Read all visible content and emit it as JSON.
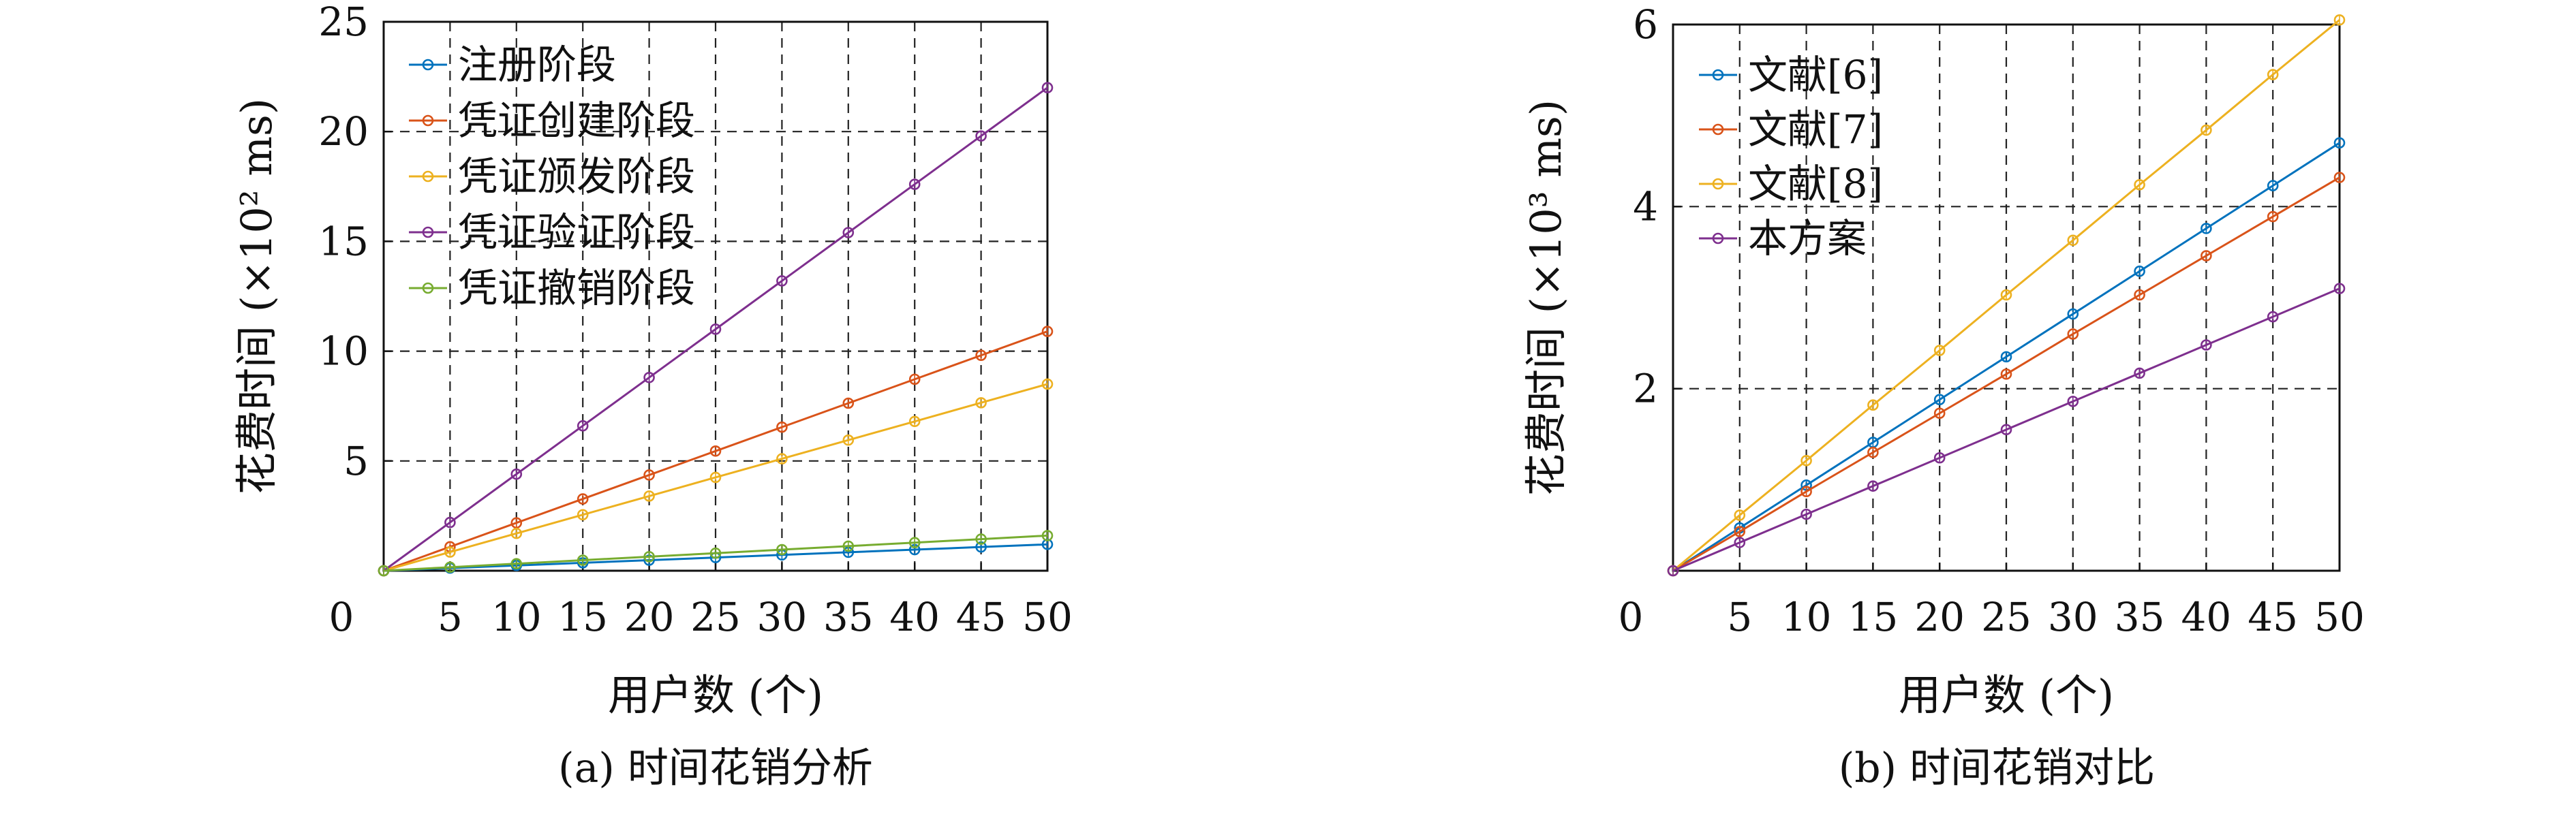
{
  "chart_data": [
    {
      "id": "a",
      "type": "line",
      "xlabel": "用户数 (个)",
      "ylabel": "花费时间 (×10² ms)",
      "caption": "(a) 时间花销分析",
      "x": [
        0,
        5,
        10,
        15,
        20,
        25,
        30,
        35,
        40,
        45,
        50
      ],
      "xticks": [
        0,
        5,
        10,
        15,
        20,
        25,
        30,
        35,
        40,
        45,
        50
      ],
      "yticks": [
        0,
        5,
        10,
        15,
        20,
        25
      ],
      "xlim": [
        0,
        50
      ],
      "ylim": [
        0,
        25
      ],
      "grid": true,
      "legend_position": "top-left",
      "series": [
        {
          "name": "注册阶段",
          "color": "#0072BD",
          "values": [
            0,
            0.12,
            0.24,
            0.36,
            0.48,
            0.6,
            0.72,
            0.84,
            0.96,
            1.08,
            1.2
          ]
        },
        {
          "name": "凭证创建阶段",
          "color": "#D95319",
          "values": [
            0,
            1.09,
            2.18,
            3.27,
            4.36,
            5.45,
            6.54,
            7.63,
            8.72,
            9.81,
            10.9
          ]
        },
        {
          "name": "凭证颁发阶段",
          "color": "#EDB120",
          "values": [
            0,
            0.85,
            1.7,
            2.55,
            3.4,
            4.25,
            5.1,
            5.95,
            6.8,
            7.65,
            8.5
          ]
        },
        {
          "name": "凭证验证阶段",
          "color": "#7E2F8E",
          "values": [
            0,
            2.2,
            4.4,
            6.6,
            8.8,
            11.0,
            13.2,
            15.4,
            17.6,
            19.8,
            22.0
          ]
        },
        {
          "name": "凭证撤销阶段",
          "color": "#77AC30",
          "values": [
            0,
            0.16,
            0.32,
            0.48,
            0.64,
            0.8,
            0.96,
            1.12,
            1.28,
            1.44,
            1.6
          ]
        }
      ]
    },
    {
      "id": "b",
      "type": "line",
      "xlabel": "用户数 (个)",
      "ylabel": "花费时间 (×10³ ms)",
      "caption": "(b) 时间花销对比",
      "x": [
        0,
        5,
        10,
        15,
        20,
        25,
        30,
        35,
        40,
        45,
        50
      ],
      "xticks": [
        0,
        5,
        10,
        15,
        20,
        25,
        30,
        35,
        40,
        45,
        50
      ],
      "yticks": [
        0,
        2,
        4,
        6
      ],
      "xlim": [
        0,
        50
      ],
      "ylim": [
        0,
        6
      ],
      "grid": true,
      "legend_position": "top-left",
      "series": [
        {
          "name": "文献[6]",
          "color": "#0072BD",
          "values": [
            0,
            0.47,
            0.94,
            1.41,
            1.88,
            2.35,
            2.82,
            3.29,
            3.76,
            4.23,
            4.7
          ]
        },
        {
          "name": "文献[7]",
          "color": "#D95319",
          "values": [
            0,
            0.43,
            0.87,
            1.3,
            1.73,
            2.16,
            2.6,
            3.03,
            3.46,
            3.89,
            4.32
          ]
        },
        {
          "name": "文献[8]",
          "color": "#EDB120",
          "values": [
            0,
            0.61,
            1.21,
            1.82,
            2.42,
            3.03,
            3.63,
            4.24,
            4.84,
            5.45,
            6.05
          ]
        },
        {
          "name": "本方案",
          "color": "#7E2F8E",
          "values": [
            0,
            0.31,
            0.62,
            0.93,
            1.24,
            1.55,
            1.86,
            2.17,
            2.48,
            2.79,
            3.1
          ]
        }
      ]
    }
  ]
}
